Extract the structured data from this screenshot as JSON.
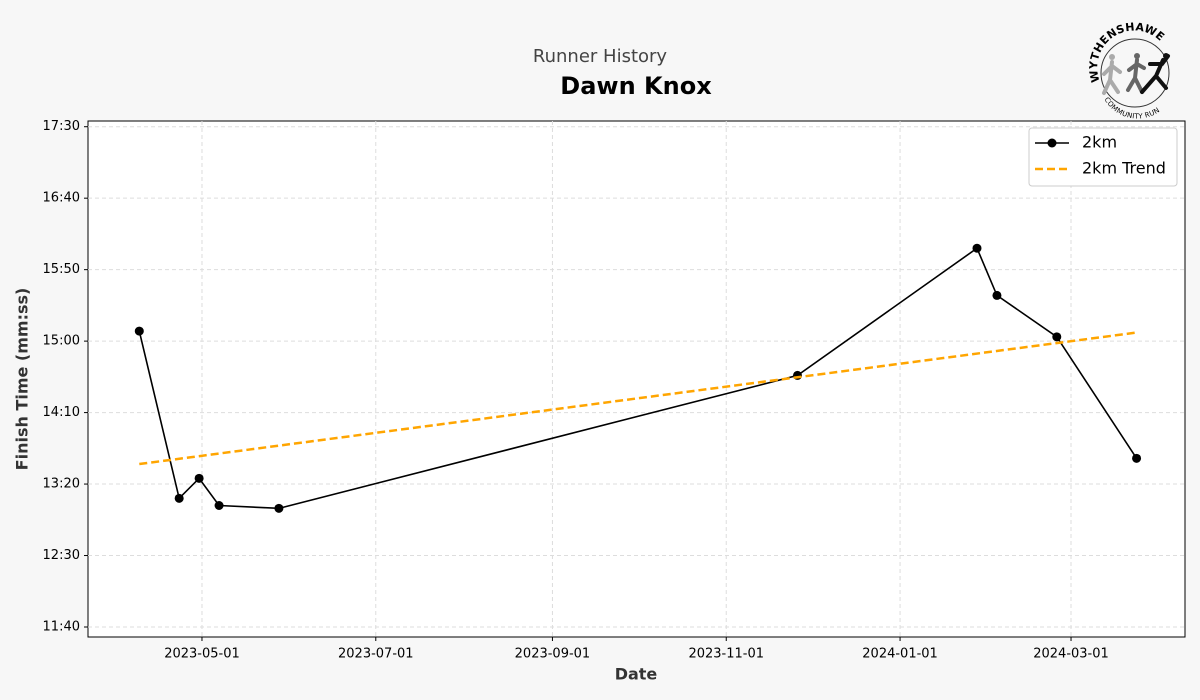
{
  "logo": {
    "name": "WYTHENSHAWE",
    "tagline": "COMMUNITY RUN"
  },
  "chart_data": {
    "type": "line",
    "subtitle": "Runner History",
    "title": "Dawn Knox",
    "x_label": "Date",
    "y_label": "Finish Time (mm:ss)",
    "xlim": [
      "2023-03-22",
      "2024-04-10"
    ],
    "xticks": [
      "2023-05-01",
      "2023-07-01",
      "2023-09-01",
      "2023-11-01",
      "2024-01-01",
      "2024-03-01"
    ],
    "ylim": [
      693,
      1054
    ],
    "yticks": [
      {
        "value": 700,
        "label": "11:40"
      },
      {
        "value": 750,
        "label": "12:30"
      },
      {
        "value": 800,
        "label": "13:20"
      },
      {
        "value": 850,
        "label": "14:10"
      },
      {
        "value": 900,
        "label": "15:00"
      },
      {
        "value": 950,
        "label": "15:50"
      },
      {
        "value": 1000,
        "label": "16:40"
      },
      {
        "value": 1050,
        "label": "17:30"
      }
    ],
    "grid": true,
    "legend": "upper right",
    "series": [
      {
        "name": "2km",
        "color": "#000000",
        "markers": true,
        "dashed": false,
        "x": [
          "2023-04-09",
          "2023-04-23",
          "2023-04-30",
          "2023-05-07",
          "2023-05-28",
          "2023-11-26",
          "2024-01-28",
          "2024-02-04",
          "2024-02-25",
          "2024-03-24"
        ],
        "values": [
          907,
          790,
          804,
          785,
          783,
          876,
          965,
          932,
          903,
          818
        ]
      },
      {
        "name": "2km Trend",
        "color": "#ffa500",
        "markers": false,
        "dashed": true,
        "x": [
          "2023-04-09",
          "2024-03-24"
        ],
        "values": [
          814,
          906
        ]
      }
    ]
  }
}
